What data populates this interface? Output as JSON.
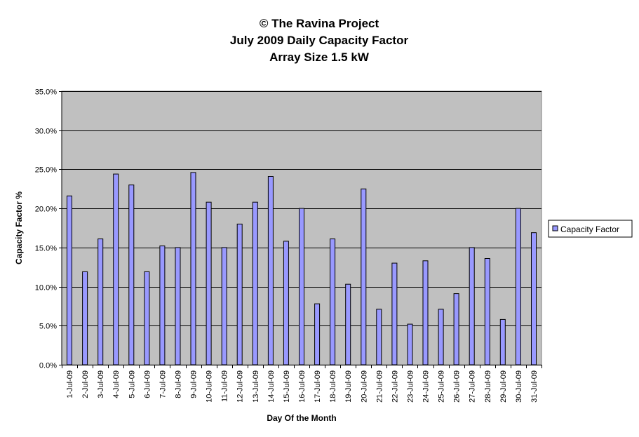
{
  "chart_data": {
    "type": "bar",
    "title_lines": [
      "© The Ravina Project",
      "July 2009 Daily Capacity Factor",
      "Array Size 1.5 kW"
    ],
    "xlabel": "Day Of the Month",
    "ylabel": "Capacity Factor %",
    "ylim": [
      0,
      35
    ],
    "yticks": [
      "0.0%",
      "5.0%",
      "10.0%",
      "15.0%",
      "20.0%",
      "25.0%",
      "30.0%",
      "35.0%"
    ],
    "grid": true,
    "legend_position": "right",
    "categories": [
      "1-Jul-09",
      "2-Jul-09",
      "3-Jul-09",
      "4-Jul-09",
      "5-Jul-09",
      "6-Jul-09",
      "7-Jul-09",
      "8-Jul-09",
      "9-Jul-09",
      "10-Jul-09",
      "11-Jul-09",
      "12-Jul-09",
      "13-Jul-09",
      "14-Jul-09",
      "15-Jul-09",
      "16-Jul-09",
      "17-Jul-09",
      "18-Jul-09",
      "19-Jul-09",
      "20-Jul-09",
      "21-Jul-09",
      "22-Jul-09",
      "23-Jul-09",
      "24-Jul-09",
      "25-Jul-09",
      "26-Jul-09",
      "27-Jul-09",
      "28-Jul-09",
      "29-Jul-09",
      "30-Jul-09",
      "31-Jul-09"
    ],
    "series": [
      {
        "name": "Capacity Factor",
        "color": "#9999ff",
        "values": [
          21.6,
          11.9,
          16.1,
          24.4,
          23.0,
          11.9,
          15.2,
          15.0,
          24.6,
          20.8,
          15.0,
          18.0,
          20.8,
          24.1,
          15.8,
          20.0,
          7.8,
          16.1,
          10.3,
          22.5,
          7.1,
          13.0,
          5.2,
          13.3,
          7.1,
          9.1,
          15.0,
          13.6,
          5.8,
          20.0,
          16.9
        ]
      }
    ]
  },
  "colors": {
    "plot_background": "#c0c0c0",
    "bar_fill": "#9999ff",
    "bar_stroke": "#000000",
    "gridline": "#000000"
  }
}
